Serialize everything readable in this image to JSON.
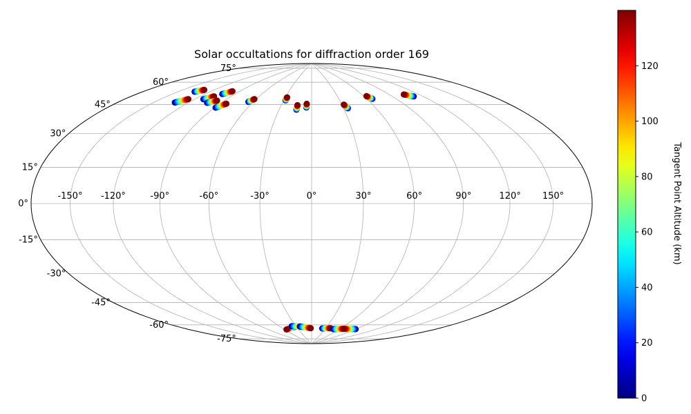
{
  "chart_data": {
    "type": "scatter",
    "projection": "hammer",
    "title": "Solar occultations for diffraction order 169",
    "grid": true,
    "lon_ticks": [
      -150,
      -120,
      -90,
      -60,
      -30,
      0,
      30,
      60,
      90,
      120,
      150
    ],
    "lon_tick_labels": [
      "-150°",
      "-120°",
      "-90°",
      "-60°",
      "-30°",
      "0°",
      "30°",
      "60°",
      "90°",
      "120°",
      "150°"
    ],
    "lat_ticks": [
      75,
      60,
      45,
      30,
      15,
      0,
      -15,
      -30,
      -45,
      -60,
      -75
    ],
    "lat_tick_labels": [
      "75°",
      "60°",
      "45°",
      "30°",
      "15°",
      "0°",
      "-15°",
      "-30°",
      "-45°",
      "-60°",
      "-75°"
    ],
    "colorbar": {
      "label": "Tangent Point Altitude (km)",
      "colormap": "jet",
      "min": 0,
      "max": 140,
      "ticks": [
        0,
        20,
        40,
        60,
        80,
        100,
        120
      ],
      "tick_labels": [
        "0",
        "20",
        "40",
        "60",
        "80",
        "100",
        "120"
      ]
    },
    "occultations": [
      {
        "lon_start": -135,
        "lat_start": 60.5,
        "lon_end": -130,
        "lat_end": 62.5
      },
      {
        "lon_start": -132,
        "lat_start": 53.5,
        "lon_end": -126,
        "lat_end": 56.5
      },
      {
        "lon_start": -112,
        "lat_start": 58.0,
        "lon_end": -107,
        "lat_end": 60.5
      },
      {
        "lon_start": -103,
        "lat_start": 62.5,
        "lon_end": -98,
        "lat_end": 65.0
      },
      {
        "lon_start": -103,
        "lat_start": 56.5,
        "lon_end": -97,
        "lat_end": 58.5
      },
      {
        "lon_start": -89,
        "lat_start": 54.5,
        "lon_end": -84,
        "lat_end": 57.5
      },
      {
        "lon_start": -65,
        "lat_start": 60.0,
        "lon_end": -62,
        "lat_end": 62.0
      },
      {
        "lon_start": -28,
        "lat_start": 62.5,
        "lon_end": -28,
        "lat_end": 64.5
      },
      {
        "lon_start": -14,
        "lat_start": 56.5,
        "lon_end": -14,
        "lat_end": 59.5
      },
      {
        "lon_start": -5,
        "lat_start": 58.0,
        "lon_end": -5,
        "lat_end": 60.5
      },
      {
        "lon_start": 34,
        "lat_start": 57.0,
        "lon_end": 32,
        "lat_end": 59.5
      },
      {
        "lon_start": 66,
        "lat_start": 62.0,
        "lon_end": 63,
        "lat_end": 64.0
      },
      {
        "lon_start": 111,
        "lat_start": 60.0,
        "lon_end": 105,
        "lat_end": 62.0
      },
      {
        "lon_start": -30,
        "lat_start": -76.5,
        "lon_end": -56,
        "lat_end": -78.0
      },
      {
        "lon_start": -38,
        "lat_start": -76.0,
        "lon_end": -18,
        "lat_end": -77.0
      },
      {
        "lon_start": -23,
        "lat_start": -76.5,
        "lon_end": -2,
        "lat_end": -78.0
      },
      {
        "lon_start": 23,
        "lat_start": -78.0,
        "lon_end": 40,
        "lat_end": -77.5
      },
      {
        "lon_start": 48,
        "lat_start": -78.0,
        "lon_end": 67,
        "lat_end": -77.0
      },
      {
        "lon_start": 89,
        "lat_start": -76.0,
        "lon_end": 68,
        "lat_end": -77.0
      }
    ]
  }
}
